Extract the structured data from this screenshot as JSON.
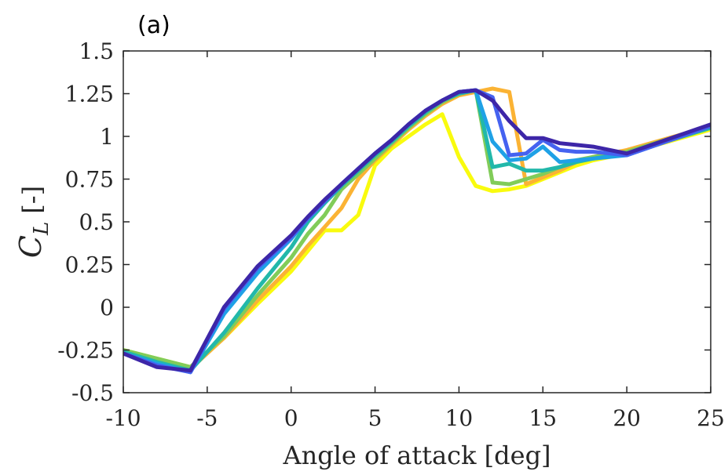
{
  "chart_data": {
    "type": "line",
    "panel_label": "(a)",
    "xlabel": "Angle of attack [deg]",
    "ylabel_main": "C",
    "ylabel_sub": "L",
    "ylabel_unit": "[-]",
    "xlim": [
      -10,
      25
    ],
    "ylim": [
      -0.5,
      1.5
    ],
    "xticks": [
      -10,
      -5,
      0,
      5,
      10,
      15,
      20,
      25
    ],
    "xtick_labels": [
      "-10",
      "-5",
      "0",
      "5",
      "10",
      "15",
      "20",
      "25"
    ],
    "yticks": [
      -0.5,
      -0.25,
      0,
      0.25,
      0.5,
      0.75,
      1,
      1.25,
      1.5
    ],
    "ytick_labels": [
      "-0.5",
      "-0.25",
      "0",
      "0.25",
      "0.5",
      "0.75",
      "1",
      "1.25",
      "1.5"
    ],
    "grid": false,
    "series": [
      {
        "color": "#F9FB0E",
        "x": [
          -10,
          -8,
          -6,
          -4,
          -2,
          0,
          1,
          2,
          3,
          4,
          5,
          6,
          7,
          8,
          9,
          10,
          11,
          12,
          13,
          14,
          15,
          16,
          17,
          18,
          20,
          25
        ],
        "y": [
          -0.25,
          -0.3,
          -0.35,
          -0.18,
          0.02,
          0.21,
          0.33,
          0.45,
          0.45,
          0.54,
          0.83,
          0.93,
          1.0,
          1.07,
          1.13,
          0.88,
          0.71,
          0.68,
          0.69,
          0.71,
          0.75,
          0.79,
          0.83,
          0.86,
          0.9,
          1.04
        ]
      },
      {
        "color": "#FBB334",
        "x": [
          -10,
          -8,
          -6,
          -4,
          -2,
          0,
          1,
          2,
          3,
          4,
          5,
          6,
          7,
          8,
          9,
          10,
          11,
          12,
          13,
          14,
          15,
          16,
          17,
          18,
          20,
          25
        ],
        "y": [
          -0.26,
          -0.31,
          -0.36,
          -0.18,
          0.04,
          0.24,
          0.36,
          0.47,
          0.58,
          0.75,
          0.86,
          0.95,
          1.04,
          1.12,
          1.19,
          1.24,
          1.26,
          1.28,
          1.26,
          0.72,
          0.76,
          0.8,
          0.85,
          0.88,
          0.92,
          1.06
        ]
      },
      {
        "color": "#81CC59",
        "x": [
          -10,
          -8,
          -6,
          -4,
          -2,
          0,
          1,
          2,
          3,
          4,
          5,
          6,
          7,
          8,
          9,
          10,
          11,
          12,
          13,
          14,
          15,
          16,
          17,
          18,
          20,
          25
        ],
        "y": [
          -0.25,
          -0.3,
          -0.35,
          -0.17,
          0.07,
          0.29,
          0.43,
          0.54,
          0.69,
          0.78,
          0.87,
          0.96,
          1.05,
          1.13,
          1.2,
          1.25,
          1.27,
          0.73,
          0.72,
          0.75,
          0.78,
          0.82,
          0.86,
          0.88,
          0.91,
          1.06
        ]
      },
      {
        "color": "#22B8AA",
        "x": [
          -10,
          -8,
          -6,
          -4,
          -2,
          0,
          1,
          2,
          3,
          4,
          5,
          6,
          7,
          8,
          9,
          10,
          11,
          12,
          13,
          14,
          15,
          16,
          17,
          18,
          20,
          25
        ],
        "y": [
          -0.26,
          -0.32,
          -0.37,
          -0.15,
          0.11,
          0.35,
          0.5,
          0.61,
          0.71,
          0.8,
          0.89,
          0.97,
          1.06,
          1.14,
          1.21,
          1.25,
          1.27,
          0.82,
          0.84,
          0.8,
          0.8,
          0.82,
          0.85,
          0.87,
          0.9,
          1.05
        ]
      },
      {
        "color": "#1FA1E6",
        "x": [
          -10,
          -8,
          -6,
          -4,
          -2,
          0,
          1,
          2,
          3,
          4,
          5,
          6,
          7,
          8,
          9,
          10,
          11,
          12,
          13,
          14,
          15,
          16,
          17,
          18,
          20,
          25
        ],
        "y": [
          -0.27,
          -0.33,
          -0.38,
          -0.04,
          0.2,
          0.4,
          0.52,
          0.62,
          0.72,
          0.81,
          0.9,
          0.98,
          1.07,
          1.15,
          1.21,
          1.26,
          1.27,
          0.97,
          0.86,
          0.87,
          0.94,
          0.85,
          0.86,
          0.87,
          0.89,
          1.06
        ]
      },
      {
        "color": "#4562F0",
        "x": [
          -10,
          -8,
          -6,
          -4,
          -2,
          0,
          1,
          2,
          3,
          4,
          5,
          6,
          7,
          8,
          9,
          10,
          11,
          12,
          13,
          14,
          15,
          16,
          17,
          18,
          20,
          25
        ],
        "y": [
          -0.27,
          -0.34,
          -0.38,
          -0.01,
          0.23,
          0.41,
          0.52,
          0.62,
          0.72,
          0.81,
          0.9,
          0.98,
          1.07,
          1.15,
          1.21,
          1.26,
          1.27,
          1.23,
          0.89,
          0.9,
          0.98,
          0.92,
          0.91,
          0.91,
          0.89,
          1.06
        ]
      },
      {
        "color": "#3D26A8",
        "x": [
          -10,
          -8,
          -6,
          -4,
          -2,
          0,
          1,
          2,
          3,
          4,
          5,
          6,
          7,
          8,
          9,
          10,
          11,
          12,
          13,
          14,
          15,
          16,
          17,
          18,
          20,
          25
        ],
        "y": [
          -0.27,
          -0.35,
          -0.37,
          0.0,
          0.24,
          0.42,
          0.53,
          0.63,
          0.72,
          0.81,
          0.9,
          0.98,
          1.07,
          1.15,
          1.21,
          1.26,
          1.27,
          1.21,
          1.09,
          0.99,
          0.99,
          0.96,
          0.95,
          0.94,
          0.9,
          1.07
        ]
      }
    ]
  }
}
